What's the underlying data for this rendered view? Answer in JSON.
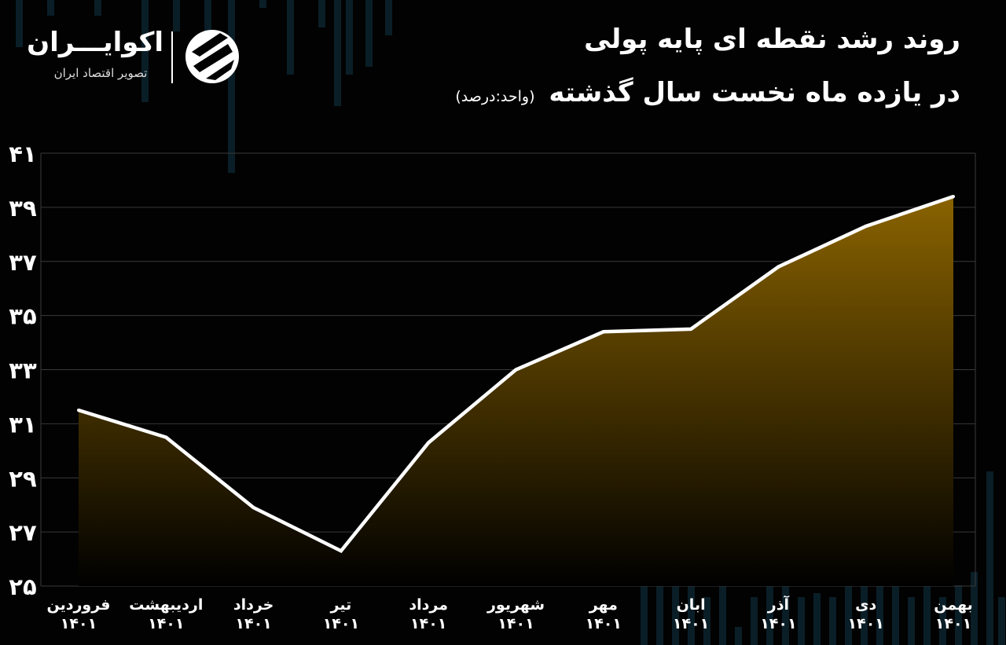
{
  "header": {
    "title": "روند رشد نقطه ای پایه پولی",
    "subtitle": "در یازده ماه نخست سال گذشته",
    "unit": "(واحد:درصد)"
  },
  "logo": {
    "name": "اکوایـــران",
    "tagline": "تصویر اقتصاد ایران"
  },
  "colors": {
    "background": "#020202",
    "line": "#ffffff",
    "area_top": "#8a6300",
    "area_bottom": "#000000",
    "grid": "#3a3a3a"
  },
  "chart_data": {
    "type": "area",
    "title": "روند رشد نقطه ای پایه پولی",
    "subtitle": "در یازده ماه نخست سال گذشته (واحد:درصد)",
    "categories": [
      {
        "month": "فروردین",
        "year": "۱۴۰۱"
      },
      {
        "month": "اردیبهشت",
        "year": "۱۴۰۱"
      },
      {
        "month": "خرداد",
        "year": "۱۴۰۱"
      },
      {
        "month": "تیر",
        "year": "۱۴۰۱"
      },
      {
        "month": "مرداد",
        "year": "۱۴۰۱"
      },
      {
        "month": "شهریور",
        "year": "۱۴۰۱"
      },
      {
        "month": "مهر",
        "year": "۱۴۰۱"
      },
      {
        "month": "ابان",
        "year": "۱۴۰۱"
      },
      {
        "month": "آذر",
        "year": "۱۴۰۱"
      },
      {
        "month": "دی",
        "year": "۱۴۰۱"
      },
      {
        "month": "بهمن",
        "year": "۱۴۰۱"
      }
    ],
    "values": [
      31.5,
      30.5,
      27.9,
      26.3,
      30.3,
      33.0,
      34.4,
      34.5,
      36.8,
      38.3,
      39.4
    ],
    "yticks": [
      "۴۱",
      "۳۹",
      "۳۷",
      "۳۵",
      "۳۳",
      "۳۱",
      "۲۹",
      "۲۷",
      "۲۵"
    ],
    "ylim": [
      25,
      41
    ],
    "grid": true,
    "xlabel": "",
    "ylabel": ""
  }
}
